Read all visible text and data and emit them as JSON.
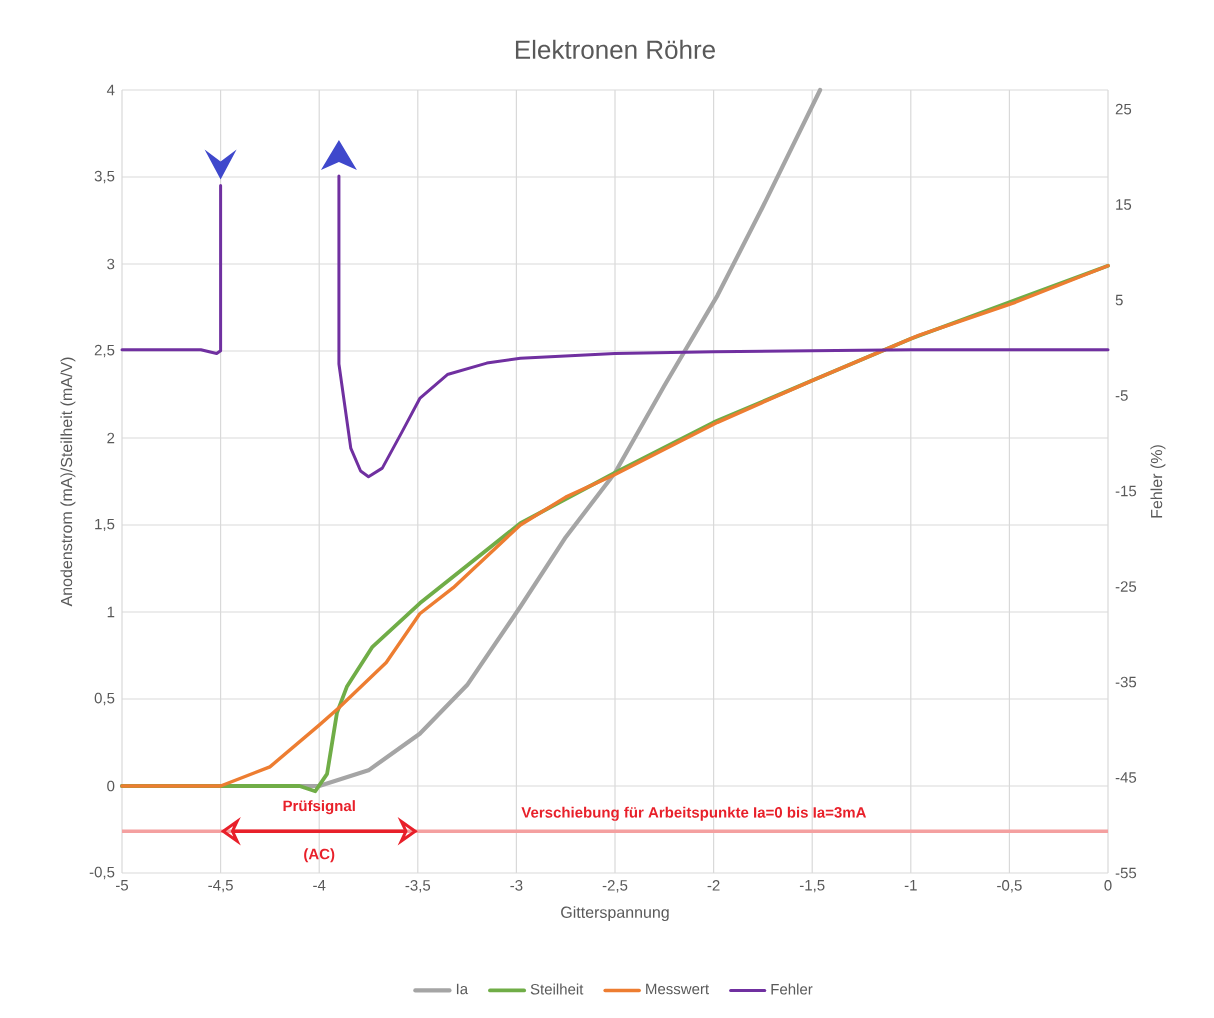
{
  "chart_data": {
    "type": "line",
    "title": "Elektronen Röhre",
    "xlabel": "Gitterspannung",
    "ylabel": "Anodenstrom (mA)/Steilheit (mA/V)",
    "y2label": "Fehler (%)",
    "xlim": [
      -5,
      0
    ],
    "xticks": [
      -5,
      {
        "value": -4.5,
        "label": "-4,5"
      },
      -4,
      {
        "value": -3.5,
        "label": "-3,5"
      },
      -3,
      {
        "value": -2.5,
        "label": "-2,5"
      },
      -2,
      {
        "value": -1.5,
        "label": "-1,5"
      },
      -1,
      {
        "value": -0.5,
        "label": "-0,5"
      },
      0
    ],
    "ylim": [
      -0.5,
      4
    ],
    "yticks": [
      {
        "value": -0.5,
        "label": "-0,5"
      },
      0,
      {
        "value": 0.5,
        "label": "0,5"
      },
      1,
      {
        "value": 1.5,
        "label": "1,5"
      },
      2,
      {
        "value": 2.5,
        "label": "2,5"
      },
      3,
      {
        "value": 3.5,
        "label": "3,5"
      },
      4
    ],
    "y2lim": [
      -55,
      27
    ],
    "y2ticks": [
      -55,
      -45,
      -35,
      -25,
      -15,
      -5,
      5,
      15,
      25
    ],
    "grid": true,
    "legend": "bottom",
    "marker": "none",
    "line_style": "solid",
    "series": [
      {
        "name": "Ia",
        "color": "#a5a5a5",
        "x": [
          -5,
          -4.5,
          -4.0,
          -3.75,
          -3.49,
          -3.25,
          -2.98,
          -2.75,
          -2.5,
          -2.25,
          -1.98,
          -1.75,
          -1.46
        ],
        "values": [
          0,
          0,
          0,
          0.09,
          0.3,
          0.58,
          1.03,
          1.43,
          1.8,
          2.3,
          2.82,
          3.33,
          4.0
        ]
      },
      {
        "name": "Steilheit",
        "color": "#70ad47",
        "x": [
          -5,
          -4.5,
          -4.1,
          -4.02,
          -3.96,
          -3.91,
          -3.86,
          -3.73,
          -3.49,
          -2.98,
          -2.5,
          -2.0,
          -1.5,
          -1.0,
          -0.5,
          0
        ],
        "values": [
          0,
          0,
          0,
          -0.03,
          0.07,
          0.42,
          0.57,
          0.8,
          1.05,
          1.51,
          1.8,
          2.09,
          2.33,
          2.57,
          2.78,
          2.99
        ]
      },
      {
        "name": "Messwert",
        "color": "#ed7d31",
        "x": [
          -5,
          -4.5,
          -4.25,
          -4.0,
          -3.9,
          -3.66,
          -3.49,
          -3.32,
          -2.98,
          -2.75,
          -2.5,
          -1.98,
          -1.48,
          -0.96,
          -0.47,
          0
        ],
        "values": [
          0,
          0,
          0.11,
          0.35,
          0.45,
          0.71,
          0.99,
          1.14,
          1.5,
          1.66,
          1.79,
          2.09,
          2.34,
          2.59,
          2.78,
          2.99
        ]
      },
      {
        "name": "Fehler",
        "color": "#7030a0",
        "axis": "y2",
        "x": [
          -5,
          -4.6,
          -4.52,
          -4.5,
          -4.5,
          -4.2,
          -3.9,
          -3.9,
          -3.84,
          -3.79,
          -3.75,
          -3.68,
          -3.58,
          -3.49,
          -3.35,
          -3.15,
          -2.98,
          -2.5,
          -2.0,
          -1.5,
          -1.0,
          -0.5,
          0
        ],
        "values": [
          -0.2,
          -0.2,
          -0.6,
          -0.3,
          17,
          null,
          18,
          -1.7,
          -10.5,
          -12.9,
          -13.5,
          -12.6,
          -8.8,
          -5.3,
          -2.8,
          -1.6,
          -1.1,
          -0.6,
          -0.4,
          -0.3,
          -0.2,
          -0.2,
          -0.2
        ]
      }
    ],
    "ref_lines": [
      {
        "axis": "y",
        "value": -0.26,
        "label": "Verschiebung für Arbeitspunkte Ia=0 bis Ia=3mA",
        "color": "#f4a0a0"
      }
    ],
    "annotations": [
      "Prüfsignal",
      "(AC)"
    ]
  }
}
